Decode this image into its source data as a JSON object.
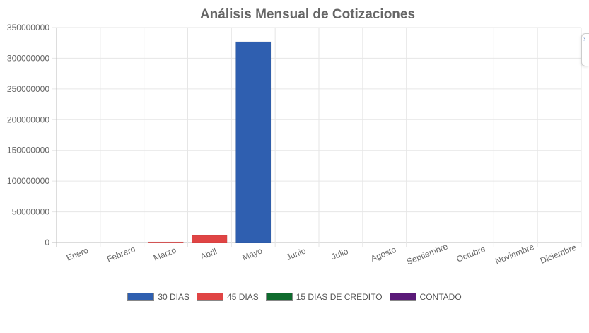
{
  "chart_data": {
    "type": "bar",
    "title": "Análisis Mensual de Cotizaciones",
    "categories": [
      "Enero",
      "Febrero",
      "Marzo",
      "Abril",
      "Mayo",
      "Junio",
      "Julio",
      "Agosto",
      "Septiembre",
      "Octubre",
      "Noviembre",
      "Diciembre"
    ],
    "series": [
      {
        "name": "30 DIAS",
        "color": "#2f5fb0",
        "values": [
          0,
          0,
          0,
          0,
          327000000,
          0,
          0,
          0,
          0,
          0,
          0,
          0
        ]
      },
      {
        "name": "45 DIAS",
        "color": "#e04444",
        "values": [
          0,
          0,
          1000000,
          11500000,
          0,
          0,
          0,
          0,
          0,
          0,
          0,
          0
        ]
      },
      {
        "name": "15 DIAS DE CREDITO",
        "color": "#0f6b2e",
        "values": [
          0,
          0,
          0,
          0,
          0,
          0,
          0,
          0,
          0,
          0,
          0,
          0
        ]
      },
      {
        "name": "CONTADO",
        "color": "#5a1a78",
        "values": [
          0,
          0,
          0,
          0,
          0,
          0,
          0,
          0,
          0,
          0,
          0,
          0
        ]
      }
    ],
    "ylim": [
      0,
      350000000
    ],
    "yticks": [
      "0",
      "50000000",
      "100000000",
      "150000000",
      "200000000",
      "250000000",
      "300000000",
      "350000000"
    ],
    "grid": true,
    "stacked": true,
    "legend_position": "bottom"
  },
  "ui": {
    "side_handle_icon": "chevron-right-icon",
    "side_handle_glyph": "›"
  }
}
